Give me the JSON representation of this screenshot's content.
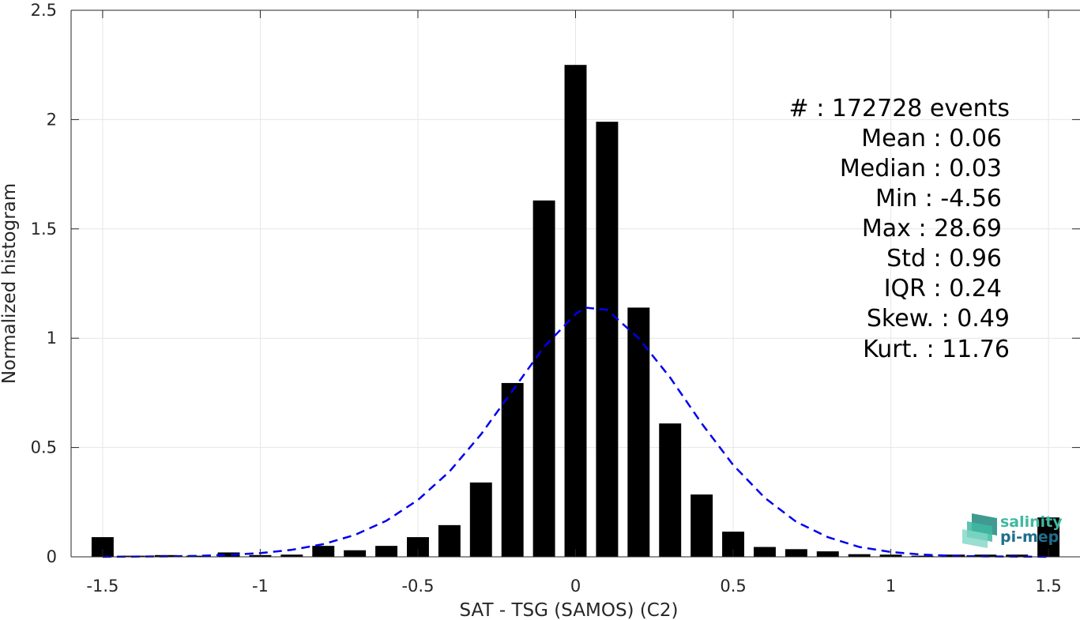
{
  "chart_data": {
    "type": "bar",
    "xlabel": "SAT - TSG (SAMOS) (C2)",
    "ylabel": "Normalized histogram",
    "xlim": [
      -1.6,
      1.6
    ],
    "ylim": [
      0,
      2.5
    ],
    "grid": true,
    "xticks": [
      -1.5,
      -1,
      -0.5,
      0,
      0.5,
      1,
      1.5
    ],
    "xtick_labels": [
      "-1.5",
      "-1",
      "-0.5",
      "0",
      "0.5",
      "1",
      "1.5"
    ],
    "yticks": [
      0,
      0.5,
      1,
      1.5,
      2,
      2.5
    ],
    "ytick_labels": [
      "0",
      "0.5",
      "1",
      "1.5",
      "2",
      "2.5"
    ],
    "bar_width": 0.07,
    "x": [
      -1.5,
      -1.4,
      -1.3,
      -1.2,
      -1.1,
      -1.0,
      -0.9,
      -0.8,
      -0.7,
      -0.6,
      -0.5,
      -0.4,
      -0.3,
      -0.2,
      -0.1,
      0.0,
      0.1,
      0.2,
      0.3,
      0.4,
      0.5,
      0.6,
      0.7,
      0.8,
      0.9,
      1.0,
      1.1,
      1.2,
      1.3,
      1.4,
      1.5
    ],
    "values": [
      0.09,
      0.005,
      0.008,
      0.005,
      0.02,
      0.008,
      0.01,
      0.05,
      0.03,
      0.05,
      0.09,
      0.145,
      0.34,
      0.795,
      1.63,
      2.25,
      1.99,
      1.14,
      0.61,
      0.285,
      0.115,
      0.045,
      0.035,
      0.025,
      0.012,
      0.01,
      0.005,
      0.01,
      0.01,
      0.01,
      0.18
    ],
    "bar_color": "#000000",
    "fit_curve": {
      "style": "dashed",
      "color": "#0000ee",
      "x": [
        -1.5,
        -1.4,
        -1.3,
        -1.2,
        -1.1,
        -1.0,
        -0.9,
        -0.8,
        -0.7,
        -0.6,
        -0.5,
        -0.4,
        -0.3,
        -0.2,
        -0.1,
        0.0,
        0.03,
        0.1,
        0.2,
        0.3,
        0.4,
        0.5,
        0.6,
        0.7,
        0.8,
        0.9,
        1.0,
        1.1,
        1.2,
        1.3,
        1.4,
        1.5
      ],
      "y": [
        0.0,
        0.001,
        0.002,
        0.004,
        0.009,
        0.017,
        0.032,
        0.058,
        0.1,
        0.165,
        0.26,
        0.39,
        0.56,
        0.76,
        0.96,
        1.11,
        1.14,
        1.13,
        1.0,
        0.82,
        0.61,
        0.42,
        0.27,
        0.16,
        0.09,
        0.045,
        0.022,
        0.01,
        0.004,
        0.002,
        0.001,
        0.0
      ]
    }
  },
  "stats": [
    {
      "text": "#  : 172728 events"
    },
    {
      "text": "Mean : 0.06"
    },
    {
      "text": "Median : 0.03"
    },
    {
      "text": "Min : -4.56"
    },
    {
      "text": "Max : 28.69"
    },
    {
      "text": "Std : 0.96"
    },
    {
      "text": "IQR : 0.24"
    },
    {
      "text": "Skew. : 0.49"
    },
    {
      "text": "Kurt. : 11.76"
    }
  ],
  "logo": {
    "line1": "salinity",
    "line2": "pi-mep",
    "color1": "#3fb8a0",
    "color2": "#1e6f8c",
    "icon": "wave-layers-icon"
  }
}
